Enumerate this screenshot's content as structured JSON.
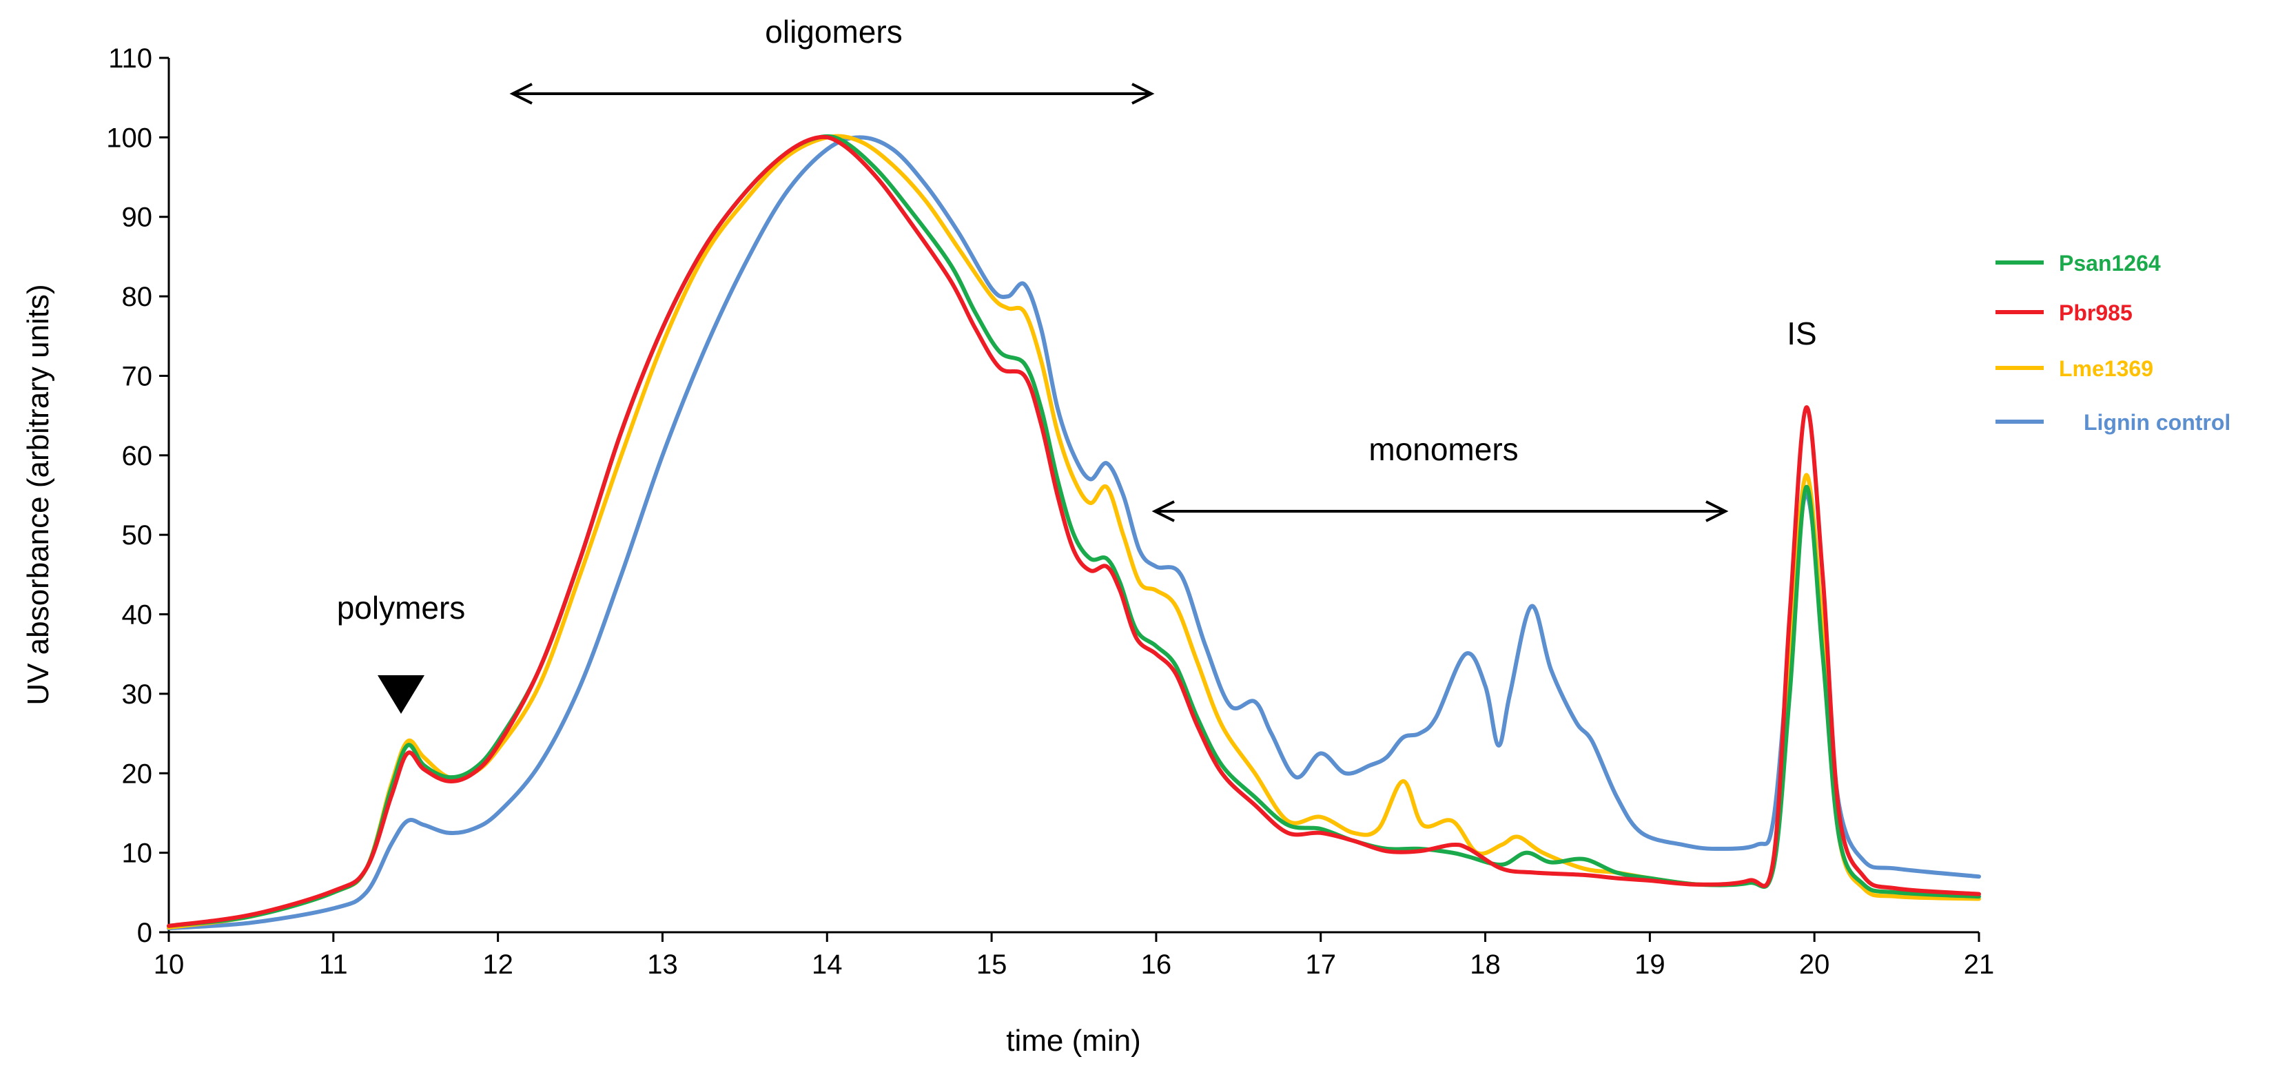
{
  "chart_data": {
    "type": "line",
    "title": "",
    "xlabel": "time (min)",
    "ylabel": "UV absorbance (arbitrary units)",
    "xlim": [
      10,
      21
    ],
    "ylim": [
      0,
      110
    ],
    "xticks": [
      10,
      11,
      12,
      13,
      14,
      15,
      16,
      17,
      18,
      19,
      20,
      21
    ],
    "yticks": [
      0,
      10,
      20,
      30,
      40,
      50,
      60,
      70,
      80,
      90,
      100,
      110
    ],
    "legend_position": "right",
    "series": [
      {
        "name": "Psan1264",
        "color": "#1aaa4b",
        "points": [
          [
            10,
            0.8
          ],
          [
            10.5,
            2
          ],
          [
            11,
            5
          ],
          [
            11.2,
            8
          ],
          [
            11.35,
            18
          ],
          [
            11.45,
            23.5
          ],
          [
            11.55,
            21
          ],
          [
            11.7,
            19.5
          ],
          [
            11.85,
            20.5
          ],
          [
            12,
            24
          ],
          [
            12.25,
            33
          ],
          [
            12.5,
            47
          ],
          [
            12.75,
            63
          ],
          [
            13,
            76
          ],
          [
            13.25,
            86
          ],
          [
            13.5,
            93
          ],
          [
            13.75,
            98
          ],
          [
            13.95,
            100
          ],
          [
            14.1,
            99.5
          ],
          [
            14.3,
            96
          ],
          [
            14.5,
            91
          ],
          [
            14.75,
            84
          ],
          [
            14.9,
            78
          ],
          [
            15.05,
            73
          ],
          [
            15.2,
            71.5
          ],
          [
            15.3,
            66
          ],
          [
            15.4,
            57
          ],
          [
            15.5,
            50
          ],
          [
            15.6,
            47
          ],
          [
            15.7,
            47
          ],
          [
            15.78,
            44
          ],
          [
            15.88,
            38
          ],
          [
            16,
            36
          ],
          [
            16.12,
            33.5
          ],
          [
            16.25,
            27
          ],
          [
            16.4,
            21
          ],
          [
            16.6,
            17
          ],
          [
            16.8,
            13.5
          ],
          [
            17,
            13
          ],
          [
            17.2,
            11.5
          ],
          [
            17.4,
            10.5
          ],
          [
            17.6,
            10.5
          ],
          [
            17.8,
            10
          ],
          [
            17.9,
            9.5
          ],
          [
            18.1,
            8.5
          ],
          [
            18.25,
            10
          ],
          [
            18.4,
            8.8
          ],
          [
            18.6,
            9.2
          ],
          [
            18.8,
            7.5
          ],
          [
            19,
            6.8
          ],
          [
            19.3,
            6
          ],
          [
            19.6,
            6.2
          ],
          [
            19.75,
            8
          ],
          [
            19.85,
            30
          ],
          [
            19.95,
            56
          ],
          [
            20.05,
            35
          ],
          [
            20.15,
            12
          ],
          [
            20.3,
            6
          ],
          [
            20.5,
            5
          ],
          [
            21,
            4.5
          ]
        ]
      },
      {
        "name": "Pbr985",
        "color": "#ee1c25",
        "points": [
          [
            10,
            0.8
          ],
          [
            10.5,
            2.2
          ],
          [
            11,
            5.2
          ],
          [
            11.2,
            8
          ],
          [
            11.35,
            17
          ],
          [
            11.45,
            22.5
          ],
          [
            11.55,
            20.5
          ],
          [
            11.7,
            19
          ],
          [
            11.85,
            20
          ],
          [
            12,
            23.5
          ],
          [
            12.25,
            33
          ],
          [
            12.5,
            47
          ],
          [
            12.75,
            63
          ],
          [
            13,
            76
          ],
          [
            13.25,
            86
          ],
          [
            13.5,
            93
          ],
          [
            13.75,
            98
          ],
          [
            13.95,
            100
          ],
          [
            14.1,
            99
          ],
          [
            14.3,
            95
          ],
          [
            14.5,
            89.5
          ],
          [
            14.75,
            82
          ],
          [
            14.9,
            76
          ],
          [
            15.05,
            71
          ],
          [
            15.2,
            70
          ],
          [
            15.3,
            64
          ],
          [
            15.4,
            55
          ],
          [
            15.5,
            48
          ],
          [
            15.6,
            45.5
          ],
          [
            15.7,
            46
          ],
          [
            15.78,
            43
          ],
          [
            15.88,
            37
          ],
          [
            16,
            35
          ],
          [
            16.12,
            32.5
          ],
          [
            16.25,
            26
          ],
          [
            16.4,
            20
          ],
          [
            16.6,
            16
          ],
          [
            16.8,
            12.5
          ],
          [
            17,
            12.5
          ],
          [
            17.2,
            11.5
          ],
          [
            17.4,
            10.2
          ],
          [
            17.6,
            10.2
          ],
          [
            17.8,
            11
          ],
          [
            17.9,
            10.5
          ],
          [
            18.1,
            8
          ],
          [
            18.3,
            7.5
          ],
          [
            18.6,
            7.2
          ],
          [
            18.8,
            6.8
          ],
          [
            19,
            6.5
          ],
          [
            19.3,
            6
          ],
          [
            19.6,
            6.5
          ],
          [
            19.75,
            9
          ],
          [
            19.85,
            40
          ],
          [
            19.95,
            66
          ],
          [
            20.05,
            45
          ],
          [
            20.15,
            15
          ],
          [
            20.3,
            7
          ],
          [
            20.5,
            5.5
          ],
          [
            21,
            4.8
          ]
        ]
      },
      {
        "name": "Lme1369",
        "color": "#ffc000",
        "points": [
          [
            10,
            0.6
          ],
          [
            10.5,
            2
          ],
          [
            11,
            5
          ],
          [
            11.2,
            8
          ],
          [
            11.35,
            18.5
          ],
          [
            11.45,
            24
          ],
          [
            11.55,
            22
          ],
          [
            11.7,
            19.5
          ],
          [
            11.85,
            20
          ],
          [
            12,
            23
          ],
          [
            12.25,
            31
          ],
          [
            12.5,
            45
          ],
          [
            12.75,
            60
          ],
          [
            13,
            74
          ],
          [
            13.25,
            85
          ],
          [
            13.5,
            92
          ],
          [
            13.75,
            97.5
          ],
          [
            14,
            100
          ],
          [
            14.2,
            99.5
          ],
          [
            14.4,
            96.5
          ],
          [
            14.6,
            92
          ],
          [
            14.8,
            86
          ],
          [
            15,
            80
          ],
          [
            15.1,
            78.5
          ],
          [
            15.2,
            78
          ],
          [
            15.3,
            72
          ],
          [
            15.4,
            63
          ],
          [
            15.5,
            57
          ],
          [
            15.6,
            54
          ],
          [
            15.7,
            56
          ],
          [
            15.8,
            50
          ],
          [
            15.9,
            44
          ],
          [
            16,
            43
          ],
          [
            16.12,
            41
          ],
          [
            16.25,
            34
          ],
          [
            16.4,
            26
          ],
          [
            16.6,
            20
          ],
          [
            16.8,
            14
          ],
          [
            17,
            14.5
          ],
          [
            17.2,
            12.5
          ],
          [
            17.35,
            13
          ],
          [
            17.5,
            19
          ],
          [
            17.62,
            13.5
          ],
          [
            17.8,
            14
          ],
          [
            17.95,
            10
          ],
          [
            18.1,
            11
          ],
          [
            18.2,
            12
          ],
          [
            18.35,
            10
          ],
          [
            18.6,
            8
          ],
          [
            18.8,
            7.5
          ],
          [
            19,
            6.8
          ],
          [
            19.3,
            6
          ],
          [
            19.6,
            6.3
          ],
          [
            19.75,
            8.5
          ],
          [
            19.85,
            35
          ],
          [
            19.95,
            57.5
          ],
          [
            20.05,
            38
          ],
          [
            20.15,
            12
          ],
          [
            20.3,
            5.5
          ],
          [
            20.5,
            4.5
          ],
          [
            21,
            4.2
          ]
        ]
      },
      {
        "name": "Lignin control",
        "color": "#5b8fd0",
        "points": [
          [
            10,
            0.5
          ],
          [
            10.5,
            1.2
          ],
          [
            11,
            3
          ],
          [
            11.2,
            5
          ],
          [
            11.35,
            11
          ],
          [
            11.45,
            14
          ],
          [
            11.55,
            13.5
          ],
          [
            11.7,
            12.5
          ],
          [
            11.85,
            13
          ],
          [
            12,
            15
          ],
          [
            12.25,
            21
          ],
          [
            12.5,
            31
          ],
          [
            12.75,
            45
          ],
          [
            13,
            60
          ],
          [
            13.25,
            73
          ],
          [
            13.5,
            84
          ],
          [
            13.75,
            93
          ],
          [
            14,
            98.5
          ],
          [
            14.2,
            100
          ],
          [
            14.4,
            98.5
          ],
          [
            14.6,
            94
          ],
          [
            14.8,
            88
          ],
          [
            15,
            81
          ],
          [
            15.1,
            80
          ],
          [
            15.2,
            81.5
          ],
          [
            15.3,
            76
          ],
          [
            15.4,
            66
          ],
          [
            15.5,
            60
          ],
          [
            15.6,
            57
          ],
          [
            15.7,
            59
          ],
          [
            15.8,
            55
          ],
          [
            15.9,
            48
          ],
          [
            16,
            46
          ],
          [
            16.15,
            45
          ],
          [
            16.3,
            36
          ],
          [
            16.45,
            28.5
          ],
          [
            16.6,
            29
          ],
          [
            16.7,
            25
          ],
          [
            16.85,
            19.5
          ],
          [
            17,
            22.5
          ],
          [
            17.15,
            20
          ],
          [
            17.3,
            21
          ],
          [
            17.4,
            22
          ],
          [
            17.5,
            24.5
          ],
          [
            17.6,
            25
          ],
          [
            17.7,
            27
          ],
          [
            17.88,
            35
          ],
          [
            18,
            31
          ],
          [
            18.08,
            23.5
          ],
          [
            18.15,
            30
          ],
          [
            18.28,
            41
          ],
          [
            18.4,
            33
          ],
          [
            18.55,
            26.5
          ],
          [
            18.65,
            24
          ],
          [
            18.8,
            17
          ],
          [
            18.95,
            12.5
          ],
          [
            19.2,
            11
          ],
          [
            19.4,
            10.5
          ],
          [
            19.65,
            11
          ],
          [
            19.75,
            14
          ],
          [
            19.85,
            36
          ],
          [
            19.95,
            55
          ],
          [
            20.05,
            38
          ],
          [
            20.15,
            16
          ],
          [
            20.3,
            9
          ],
          [
            20.5,
            8
          ],
          [
            21,
            7
          ]
        ]
      }
    ],
    "annotations": [
      {
        "text": "oligomers",
        "type": "range",
        "from": 12.1,
        "to": 16
      },
      {
        "text": "monomers",
        "type": "range",
        "from": 16,
        "to": 19.5
      },
      {
        "text": "polymers",
        "type": "marker",
        "at": 11.4
      },
      {
        "text": "IS",
        "type": "label",
        "at": 19.95
      }
    ]
  }
}
